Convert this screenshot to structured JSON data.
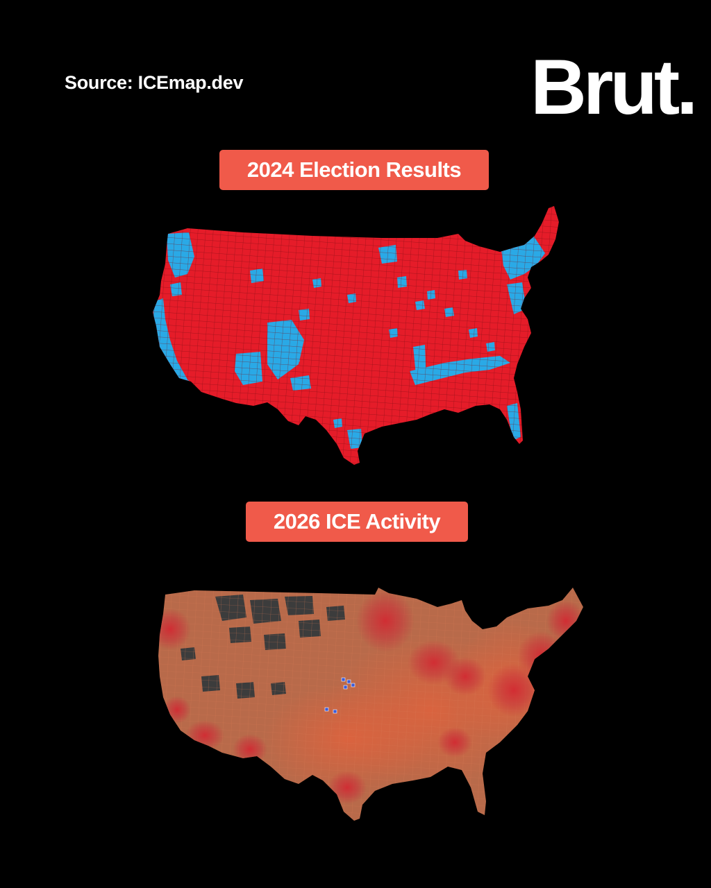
{
  "header": {
    "source_text": "Source: ICEmap.dev",
    "logo_text": "Brut."
  },
  "election_map": {
    "title": "2024 Election Results",
    "colors": {
      "republican": "#e51c29",
      "democratic": "#2aa9e6",
      "county_border": "#7a0c12"
    }
  },
  "ice_map": {
    "title": "2026 ICE Activity",
    "colors": {
      "base": "#b86a4a",
      "county_border": "#d97a55",
      "low_activity": "#3c3c3c",
      "hotspot": "#d22a32",
      "marker": "#3a5bd9"
    }
  }
}
